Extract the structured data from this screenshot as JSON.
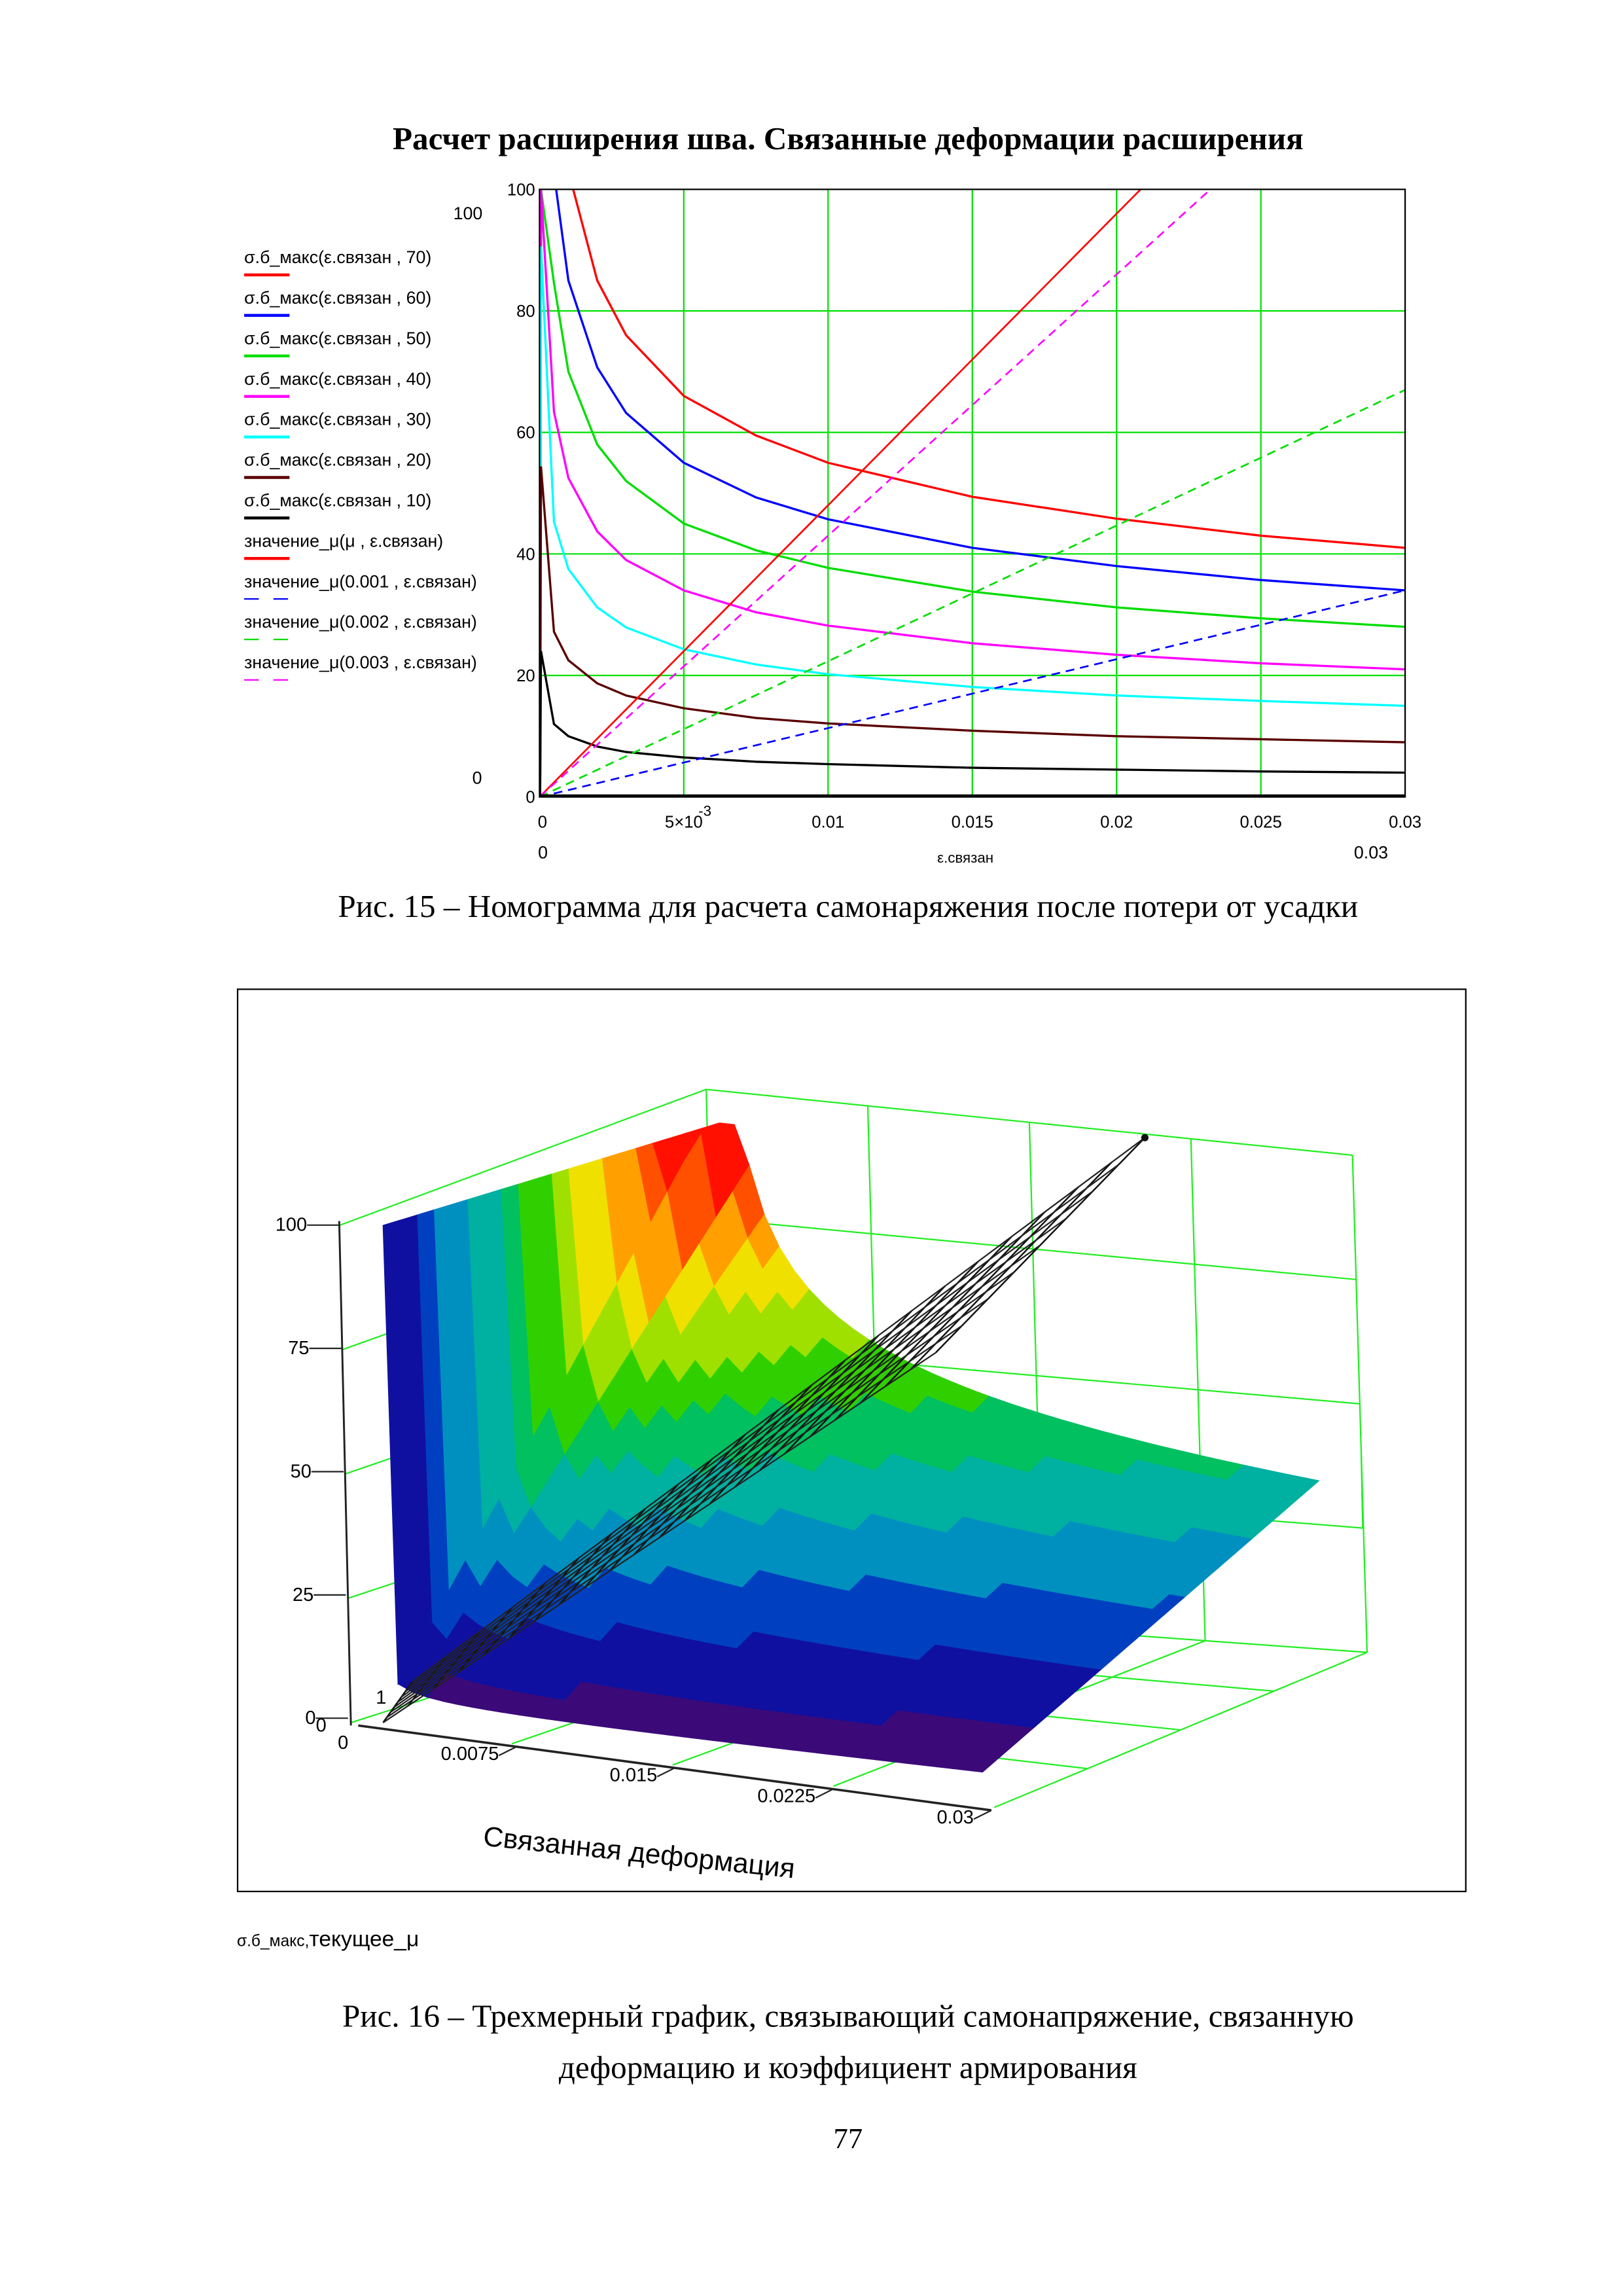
{
  "title": "Расчет расширения шва. Связанные деформации расширения",
  "fig15": {
    "caption": "Рис. 15 – Номограмма для расчета самонаряжения после потери от усадки",
    "chart_data": {
      "type": "line",
      "title": "",
      "xlabel": "ε.связан",
      "ylabel": "",
      "xlim": [
        0,
        0.03
      ],
      "ylim": [
        0,
        100
      ],
      "grid": true,
      "legend_position": "left",
      "x_ticks": [
        "0",
        "5×10",
        "0.01",
        "0.015",
        "0.02",
        "0.025",
        "0.03"
      ],
      "x_tick_exponent": "-3",
      "y_ticks": [
        "0",
        "20",
        "40",
        "60",
        "80",
        "100"
      ],
      "extra_labels": {
        "y_max": "100",
        "y_min": "0",
        "x_min": "0",
        "x_max": "0.03"
      },
      "x": [
        0.0005,
        0.001,
        0.002,
        0.003,
        0.005,
        0.0075,
        0.01,
        0.015,
        0.02,
        0.025,
        0.03
      ],
      "series": [
        {
          "name": "σ.б_макс(ε.связан , 70)",
          "color": "#ff0000",
          "style": "solid",
          "values": [
            124,
            103,
            85,
            76,
            66,
            59.5,
            55,
            49.4,
            45.8,
            43,
            41
          ]
        },
        {
          "name": "σ.б_макс(ε.связан , 60)",
          "color": "#0000ff",
          "style": "solid",
          "values": [
            102.7,
            85,
            70.7,
            63.2,
            55,
            49.3,
            45.7,
            41,
            38,
            35.7,
            34
          ]
        },
        {
          "name": "σ.б_макс(ε.связан , 50)",
          "color": "#00dd00",
          "style": "solid",
          "values": [
            84.6,
            70,
            58,
            52,
            45,
            40.6,
            37.7,
            33.8,
            31.2,
            29.4,
            28
          ]
        },
        {
          "name": "σ.б_макс(ε.связан , 40)",
          "color": "#ff00ff",
          "style": "solid",
          "values": [
            63.4,
            52.5,
            43.7,
            39,
            34,
            30.4,
            28.2,
            25.3,
            23.4,
            22,
            21
          ]
        },
        {
          "name": "σ.б_макс(ε.связан , 30)",
          "color": "#00ffff",
          "style": "solid",
          "values": [
            45.3,
            37.5,
            31.2,
            27.9,
            24.3,
            21.8,
            20.2,
            18.1,
            16.7,
            15.8,
            15
          ]
        },
        {
          "name": "σ.б_макс(ε.связан , 20)",
          "color": "#5a0000",
          "style": "solid",
          "values": [
            27.2,
            22.5,
            18.7,
            16.7,
            14.6,
            13,
            12.1,
            10.9,
            10,
            9.5,
            9
          ]
        },
        {
          "name": "σ.б_макс(ε.связан , 10)",
          "color": "#000000",
          "style": "solid",
          "values": [
            12,
            10,
            8.3,
            7.4,
            6.5,
            5.8,
            5.4,
            4.8,
            4.5,
            4.2,
            4
          ]
        }
      ],
      "lines": [
        {
          "name": "значение_μ(μ , ε.связан)",
          "color": "#ff0000",
          "style": "solid",
          "x": [
            0,
            0.03
          ],
          "values": [
            0,
            144
          ]
        },
        {
          "name": "значение_μ(0.001 , ε.связан)",
          "color": "#0000ff",
          "style": "dashed",
          "x": [
            0,
            0.03
          ],
          "values": [
            0,
            34
          ]
        },
        {
          "name": "значение_μ(0.002 , ε.связан)",
          "color": "#00dd00",
          "style": "dashed",
          "x": [
            0,
            0.03
          ],
          "values": [
            0,
            67
          ]
        },
        {
          "name": "значение_μ(0.003 , ε.связан)",
          "color": "#ff00ff",
          "style": "dashed",
          "x": [
            0,
            0.03
          ],
          "values": [
            0,
            129
          ]
        }
      ]
    }
  },
  "fig16": {
    "caption_line1": "Рис. 16 – Трехмерный график, связывающий самонапряжение, связанную",
    "caption_line2": "деформацию и коэффициент армирования",
    "expression": {
      "main": "σ.б_макс",
      "sep": ",",
      "second": "текущее_μ"
    },
    "chart_data": {
      "type": "surface",
      "xlabel": "Связанная деформация",
      "x_ticks": [
        "0",
        "0.0075",
        "0.015",
        "0.0225",
        "0.03"
      ],
      "z_ticks": [
        "0",
        "25",
        "50",
        "75",
        "100"
      ],
      "extra_labels": [
        "0",
        "1"
      ],
      "xlim": [
        0,
        0.03
      ],
      "zlim": [
        0,
        100
      ],
      "colormap": [
        "#3b0a78",
        "#1010a0",
        "#0040c0",
        "#0090c0",
        "#00b0a0",
        "#00c060",
        "#30d000",
        "#a0e000",
        "#f0e000",
        "#ffa000",
        "#ff5000",
        "#ff1000"
      ]
    }
  },
  "page_number": "77"
}
